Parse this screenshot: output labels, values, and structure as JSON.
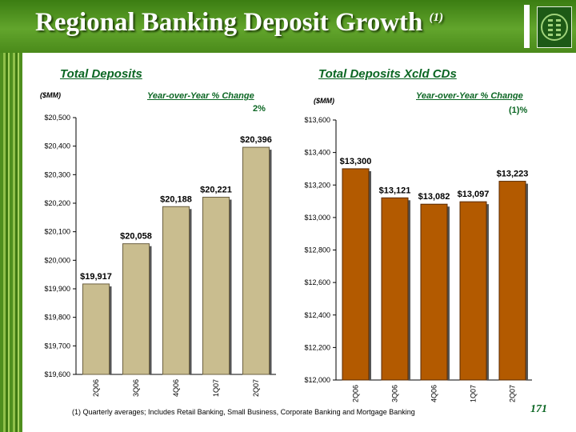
{
  "slide": {
    "title": "Regional Banking Deposit Growth",
    "title_footnote_ref": "(1)",
    "footnote": "(1) Quarterly averages; Includes Retail Banking, Small Business, Corporate Banking and Mortgage Banking",
    "page_number": "171"
  },
  "colors": {
    "header_green": "#4a8a1a",
    "title_green": "#0b6623",
    "chart1_bar": "#c9bd8f",
    "chart2_bar": "#b35a00"
  },
  "chart_data": [
    {
      "type": "bar",
      "title": "Total Deposits",
      "unit_label": "($MM)",
      "annotation_label": "Year-over-Year % Change",
      "annotation_value": "2%",
      "categories": [
        "2Q06",
        "3Q06",
        "4Q06",
        "1Q07",
        "2Q07"
      ],
      "values": [
        19917,
        20058,
        20188,
        20221,
        20396
      ],
      "data_labels": [
        "$19,917",
        "$20,058",
        "$20,188",
        "$20,221",
        "$20,396"
      ],
      "ylim": [
        19600,
        20500
      ],
      "y_ticks": [
        19600,
        19700,
        19800,
        19900,
        20000,
        20100,
        20200,
        20300,
        20400,
        20500
      ],
      "y_tick_labels": [
        "$19,600",
        "$19,700",
        "$19,800",
        "$19,900",
        "$20,000",
        "$20,100",
        "$20,200",
        "$20,300",
        "$20,400",
        "$20,500"
      ],
      "grid": false,
      "legend": "none"
    },
    {
      "type": "bar",
      "title": "Total Deposits Xcld CDs",
      "unit_label": "($MM)",
      "annotation_label": "Year-over-Year % Change",
      "annotation_value": "(1)%",
      "categories": [
        "2Q06",
        "3Q06",
        "4Q06",
        "1Q07",
        "2Q07"
      ],
      "values": [
        13300,
        13121,
        13082,
        13097,
        13223
      ],
      "data_labels": [
        "$13,300",
        "$13,121",
        "$13,082",
        "$13,097",
        "$13,223"
      ],
      "ylim": [
        12000,
        13600
      ],
      "y_ticks": [
        12000,
        12200,
        12400,
        12600,
        12800,
        13000,
        13200,
        13400,
        13600
      ],
      "y_tick_labels": [
        "$12,000",
        "$12,200",
        "$12,400",
        "$12,600",
        "$12,800",
        "$13,000",
        "$13,200",
        "$13,400",
        "$13,600"
      ],
      "grid": false,
      "legend": "none"
    }
  ]
}
